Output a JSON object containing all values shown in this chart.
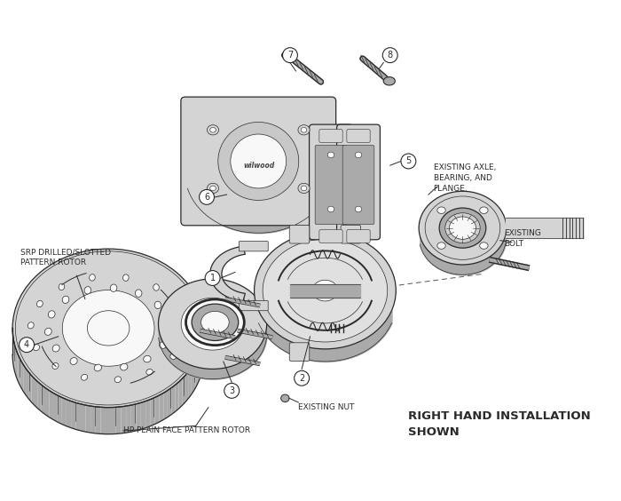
{
  "bg_color": "#ffffff",
  "line_color": "#2a2a2a",
  "fill_light": "#d4d4d4",
  "fill_medium": "#aaaaaa",
  "fill_dark": "#777777",
  "fill_white": "#f8f8f8",
  "fig_width": 7.0,
  "fig_height": 5.64,
  "dpi": 100,
  "annotations": {
    "srp_rotor": "SRP DRILLED/SLOTTED\nPATTERN ROTOR",
    "hp_rotor": "HP PLAIN FACE PATTERN ROTOR",
    "existing_nut": "EXISTING NUT",
    "existing_axle": "EXISTING AXLE,\nBEARING, AND\nFLANGE.",
    "existing_bolt": "EXISTING\nBOLT",
    "footer": "RIGHT HAND INSTALLATION\nSHOWN"
  },
  "label_fontsize": 6.5,
  "footer_fontsize": 9.5
}
